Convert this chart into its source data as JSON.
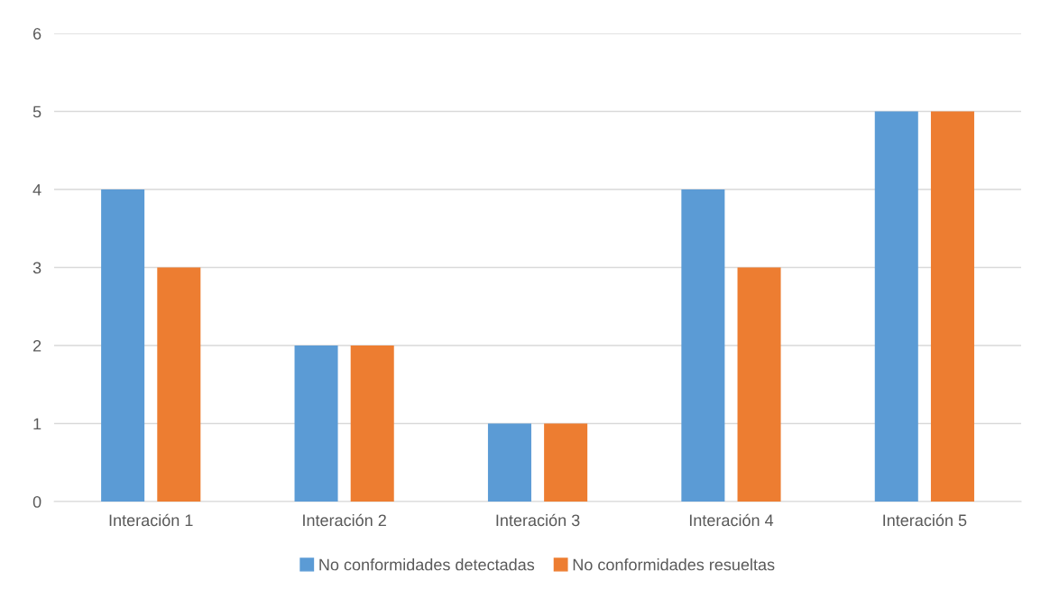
{
  "chart_data": {
    "type": "bar",
    "categories": [
      "Interación 1",
      "Interación 2",
      "Interación 3",
      "Interación 4",
      "Interación 5"
    ],
    "series": [
      {
        "name": "No conformidades detectadas",
        "color": "#5b9bd5",
        "values": [
          4,
          2,
          1,
          4,
          5
        ]
      },
      {
        "name": "No conformidades resueltas",
        "color": "#ed7d31",
        "values": [
          3,
          2,
          1,
          3,
          5
        ]
      }
    ],
    "ylim": [
      0,
      6
    ],
    "yticks": [
      0,
      1,
      2,
      3,
      4,
      5,
      6
    ],
    "grid": "y",
    "legend": "bottom"
  }
}
